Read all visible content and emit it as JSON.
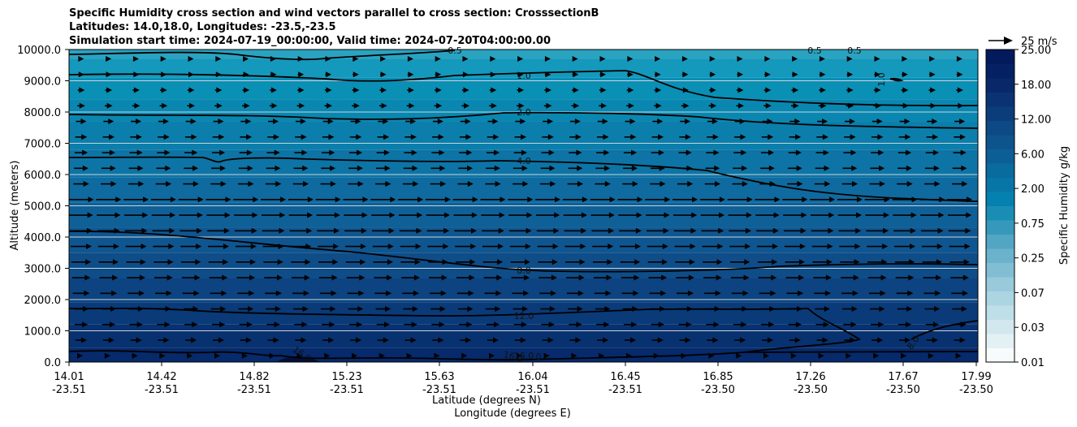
{
  "chart_data": {
    "type": "heatmap",
    "title_lines": [
      "Specific Humidity cross section and wind vectors parallel to cross section: CrosssectionB",
      "Latitudes: 14.0,18.0, Longitudes: -23.5,-23.5",
      "Simulation start time: 2024-07-19_00:00:00, Valid time: 2024-07-20T04:00:00.00"
    ],
    "ylabel": "Altitude (meters)",
    "xlabel_line1": "Latitude (degrees N)",
    "xlabel_line2": "Longitude (degrees E)",
    "ylim": [
      0,
      10000
    ],
    "yticks": [
      "0.0",
      "1000.0",
      "2000.0",
      "3000.0",
      "4000.0",
      "5000.0",
      "6000.0",
      "7000.0",
      "8000.0",
      "9000.0",
      "10000.0"
    ],
    "xticks": [
      {
        "lat": "14.01",
        "lon": "-23.51"
      },
      {
        "lat": "14.42",
        "lon": "-23.51"
      },
      {
        "lat": "14.82",
        "lon": "-23.51"
      },
      {
        "lat": "15.23",
        "lon": "-23.51"
      },
      {
        "lat": "15.63",
        "lon": "-23.51"
      },
      {
        "lat": "16.04",
        "lon": "-23.51"
      },
      {
        "lat": "16.45",
        "lon": "-23.51"
      },
      {
        "lat": "16.85",
        "lon": "-23.50"
      },
      {
        "lat": "17.26",
        "lon": "-23.50"
      },
      {
        "lat": "17.67",
        "lon": "-23.50"
      },
      {
        "lat": "17.99",
        "lon": "-23.50"
      }
    ],
    "grid": "horizontal",
    "colorbar": {
      "label": "Specific Humidity g/kg",
      "levels": [
        "0.01",
        "0.03",
        "0.07",
        "0.25",
        "0.75",
        "2.00",
        "6.00",
        "12.00",
        "18.00",
        "25.00"
      ],
      "colors": [
        "#f7fbfc",
        "#e4f1f4",
        "#d2e8ee",
        "#bfdfe8",
        "#acd5e2",
        "#98cadb",
        "#82bed3",
        "#6bb2cc",
        "#52a6c4",
        "#3699bc",
        "#1a8db5",
        "#0481ae",
        "#0776a6",
        "#0a6b9e",
        "#0c5f96",
        "#0d548d",
        "#0d4984",
        "#0c3d7b",
        "#0b3273",
        "#08286a",
        "#052063",
        "#031a5c"
      ]
    },
    "quiver_key": "25 m/s",
    "contours": [
      {
        "label": "16.0",
        "altitude_m": 250
      },
      {
        "label": "12.0",
        "altitude_m": 1700
      },
      {
        "label": "8.0",
        "altitude_m": 3800
      },
      {
        "label": "4.0",
        "altitude_m": 6400
      },
      {
        "label": "2.0",
        "altitude_m": 7850
      },
      {
        "label": "1.0",
        "altitude_m": 9150
      },
      {
        "label": "0.5",
        "altitude_m": 9950
      }
    ],
    "contour_labels_extra": [
      "16.0",
      "0.5",
      "0.5",
      "1.0",
      "8.0",
      "0",
      "16.0"
    ]
  }
}
